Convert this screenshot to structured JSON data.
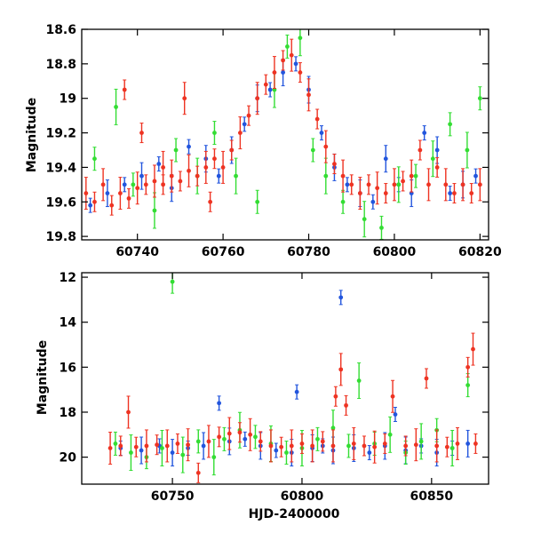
{
  "chart_data": [
    {
      "type": "scatter",
      "title": "",
      "xlabel": "",
      "ylabel": "Magnitude",
      "xlim": [
        60727,
        60822
      ],
      "ylim": [
        19.82,
        18.6
      ],
      "y_inverted": true,
      "error_bars": true,
      "x_ticks": [
        60740,
        60760,
        60780,
        60800,
        60820
      ],
      "y_ticks": [
        18.6,
        18.8,
        19,
        19.2,
        19.4,
        19.6,
        19.8
      ],
      "series": [
        {
          "color": "#2255dd",
          "points": [
            [
              60729,
              19.62
            ],
            [
              60733,
              19.55
            ],
            [
              60737,
              19.5
            ],
            [
              60741,
              19.45
            ],
            [
              60745,
              19.38
            ],
            [
              60748,
              19.52
            ],
            [
              60752,
              19.28
            ],
            [
              60756,
              19.35
            ],
            [
              60759,
              19.45
            ],
            [
              60762,
              19.3
            ],
            [
              60765,
              19.15
            ],
            [
              60768,
              19.0
            ],
            [
              60771,
              18.95
            ],
            [
              60774,
              18.85
            ],
            [
              60777,
              18.8
            ],
            [
              60780,
              18.95
            ],
            [
              60783,
              19.2
            ],
            [
              60786,
              19.4
            ],
            [
              60789,
              19.5
            ],
            [
              60792,
              19.55
            ],
            [
              60795,
              19.6
            ],
            [
              60798,
              19.35
            ],
            [
              60801,
              19.5
            ],
            [
              60804,
              19.55
            ],
            [
              60807,
              19.2
            ],
            [
              60810,
              19.3
            ],
            [
              60813,
              19.55
            ],
            [
              60816,
              19.5
            ],
            [
              60819,
              19.45
            ]
          ]
        },
        {
          "color": "#33dd33",
          "points": [
            [
              60730,
              19.35
            ],
            [
              60735,
              19.05
            ],
            [
              60739,
              19.5
            ],
            [
              60744,
              19.65
            ],
            [
              60749,
              19.3
            ],
            [
              60754,
              19.45
            ],
            [
              60758,
              19.2
            ],
            [
              60763,
              19.45
            ],
            [
              60768,
              19.6
            ],
            [
              60772,
              18.95
            ],
            [
              60775,
              18.7
            ],
            [
              60778,
              18.65
            ],
            [
              60781,
              19.3
            ],
            [
              60784,
              19.45
            ],
            [
              60788,
              19.6
            ],
            [
              60793,
              19.7
            ],
            [
              60797,
              19.75
            ],
            [
              60801,
              19.5
            ],
            [
              60805,
              19.45
            ],
            [
              60809,
              19.35
            ],
            [
              60813,
              19.15
            ],
            [
              60817,
              19.3
            ],
            [
              60820,
              19.0
            ]
          ]
        },
        {
          "color": "#ee3322",
          "points": [
            [
              60728,
              19.55
            ],
            [
              60730,
              19.6
            ],
            [
              60732,
              19.5
            ],
            [
              60734,
              19.62
            ],
            [
              60736,
              19.55
            ],
            [
              60738,
              19.58
            ],
            [
              60740,
              19.52
            ],
            [
              60742,
              19.5
            ],
            [
              60744,
              19.48
            ],
            [
              60746,
              19.5
            ],
            [
              60748,
              19.45
            ],
            [
              60750,
              19.48
            ],
            [
              60752,
              19.42
            ],
            [
              60754,
              19.45
            ],
            [
              60756,
              19.4
            ],
            [
              60758,
              19.35
            ],
            [
              60760,
              19.4
            ],
            [
              60762,
              19.3
            ],
            [
              60764,
              19.2
            ],
            [
              60766,
              19.1
            ],
            [
              60768,
              19.0
            ],
            [
              60770,
              18.92
            ],
            [
              60772,
              18.85
            ],
            [
              60774,
              18.78
            ],
            [
              60776,
              18.75
            ],
            [
              60778,
              18.85
            ],
            [
              60780,
              18.98
            ],
            [
              60782,
              19.12
            ],
            [
              60784,
              19.28
            ],
            [
              60786,
              19.38
            ],
            [
              60788,
              19.45
            ],
            [
              60790,
              19.5
            ],
            [
              60792,
              19.55
            ],
            [
              60794,
              19.5
            ],
            [
              60796,
              19.52
            ],
            [
              60798,
              19.55
            ],
            [
              60800,
              19.5
            ],
            [
              60802,
              19.48
            ],
            [
              60804,
              19.45
            ],
            [
              60806,
              19.3
            ],
            [
              60808,
              19.5
            ],
            [
              60810,
              19.4
            ],
            [
              60812,
              19.5
            ],
            [
              60814,
              19.55
            ],
            [
              60816,
              19.5
            ],
            [
              60818,
              19.55
            ],
            [
              60820,
              19.5
            ],
            [
              60741,
              19.2
            ],
            [
              60751,
              19.0
            ],
            [
              60737,
              18.95
            ],
            [
              60746,
              19.4
            ],
            [
              60757,
              19.6
            ]
          ]
        }
      ]
    },
    {
      "type": "scatter",
      "title": "",
      "xlabel": "HJD-2400000",
      "ylabel": "Magnitude",
      "xlim": [
        60715,
        60872
      ],
      "ylim": [
        21.2,
        11.8
      ],
      "y_inverted": true,
      "error_bars": true,
      "x_ticks": [
        60750,
        60800,
        60850
      ],
      "y_ticks": [
        12,
        14,
        16,
        18,
        20
      ],
      "series": [
        {
          "color": "#2255dd",
          "points": [
            [
              60730,
              19.6
            ],
            [
              60738,
              19.7
            ],
            [
              60745,
              19.5
            ],
            [
              60750,
              19.8
            ],
            [
              60756,
              19.6
            ],
            [
              60762,
              19.5
            ],
            [
              60768,
              17.6
            ],
            [
              60772,
              19.3
            ],
            [
              60778,
              19.2
            ],
            [
              60784,
              19.5
            ],
            [
              60790,
              19.7
            ],
            [
              60796,
              19.8
            ],
            [
              60798,
              17.1
            ],
            [
              60804,
              19.6
            ],
            [
              60808,
              19.5
            ],
            [
              60812,
              19.7
            ],
            [
              60815,
              12.9
            ],
            [
              60820,
              19.6
            ],
            [
              60826,
              19.8
            ],
            [
              60832,
              19.5
            ],
            [
              60836,
              18.1
            ],
            [
              60840,
              19.7
            ],
            [
              60846,
              19.5
            ],
            [
              60852,
              19.8
            ],
            [
              60858,
              19.6
            ],
            [
              60864,
              19.4
            ]
          ]
        },
        {
          "color": "#33dd33",
          "points": [
            [
              60728,
              19.4
            ],
            [
              60734,
              19.8
            ],
            [
              60740,
              20.0
            ],
            [
              60746,
              19.6
            ],
            [
              60750,
              12.2
            ],
            [
              60754,
              19.9
            ],
            [
              60760,
              19.3
            ],
            [
              60766,
              20.0
            ],
            [
              60770,
              19.2
            ],
            [
              60776,
              18.8
            ],
            [
              60782,
              19.1
            ],
            [
              60788,
              19.4
            ],
            [
              60794,
              19.8
            ],
            [
              60800,
              19.6
            ],
            [
              60806,
              19.2
            ],
            [
              60812,
              18.7
            ],
            [
              60818,
              19.5
            ],
            [
              60822,
              16.6
            ],
            [
              60828,
              19.4
            ],
            [
              60834,
              19.0
            ],
            [
              60840,
              19.8
            ],
            [
              60846,
              19.3
            ],
            [
              60852,
              18.8
            ],
            [
              60858,
              19.6
            ],
            [
              60864,
              16.8
            ]
          ]
        },
        {
          "color": "#ee3322",
          "points": [
            [
              60726,
              19.6
            ],
            [
              60730,
              19.5
            ],
            [
              60733,
              18.0
            ],
            [
              60736,
              19.55
            ],
            [
              60740,
              19.5
            ],
            [
              60744,
              19.45
            ],
            [
              60748,
              19.5
            ],
            [
              60752,
              19.4
            ],
            [
              60756,
              19.45
            ],
            [
              60760,
              20.7
            ],
            [
              60764,
              19.3
            ],
            [
              60768,
              19.1
            ],
            [
              60772,
              18.95
            ],
            [
              60776,
              18.9
            ],
            [
              60780,
              19.0
            ],
            [
              60784,
              19.3
            ],
            [
              60788,
              19.5
            ],
            [
              60792,
              19.55
            ],
            [
              60796,
              19.5
            ],
            [
              60800,
              19.4
            ],
            [
              60804,
              19.5
            ],
            [
              60808,
              19.3
            ],
            [
              60812,
              19.5
            ],
            [
              60813,
              17.3
            ],
            [
              60815,
              16.1
            ],
            [
              60817,
              17.7
            ],
            [
              60820,
              19.4
            ],
            [
              60824,
              19.5
            ],
            [
              60828,
              19.55
            ],
            [
              60832,
              19.4
            ],
            [
              60835,
              17.3
            ],
            [
              60840,
              19.5
            ],
            [
              60844,
              19.45
            ],
            [
              60848,
              16.5
            ],
            [
              60852,
              19.5
            ],
            [
              60856,
              19.55
            ],
            [
              60860,
              19.4
            ],
            [
              60864,
              16.0
            ],
            [
              60866,
              15.2
            ],
            [
              60867,
              19.4
            ]
          ]
        }
      ]
    }
  ]
}
